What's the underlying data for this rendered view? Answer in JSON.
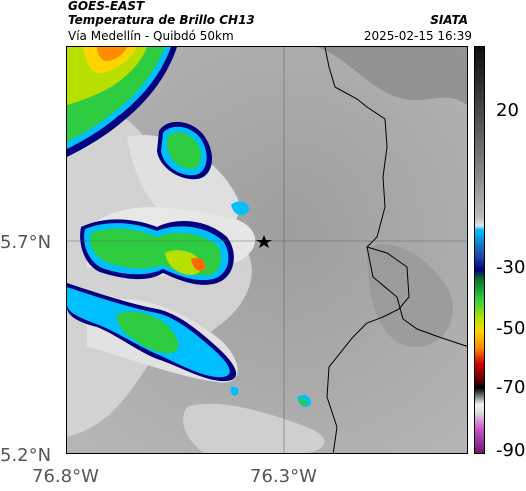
{
  "header": {
    "satellite": "GOES-EAST",
    "product": "Temperatura de Brillo CH13",
    "route": "Vía Medellín - Quibdó 50km",
    "brand": "SIATA",
    "timestamp": "2025-02-15 16:39"
  },
  "axes": {
    "lat_ticks": [
      "5.7°N",
      "5.2°N"
    ],
    "lon_ticks": [
      "76.8°W",
      "76.3°W"
    ]
  },
  "colorbar": {
    "ticks": [
      "20",
      "-30",
      "-50",
      "-70",
      "-90"
    ]
  },
  "colors": {
    "ground": "#a9a9a9",
    "cloud_warm": "#e0e0e0",
    "cloud_cold": "#2ecc40",
    "cold_core": "#ff6a00",
    "edge": "#000080",
    "edge_cyan": "#00bfff"
  },
  "marker": {
    "icon": "star-icon"
  }
}
